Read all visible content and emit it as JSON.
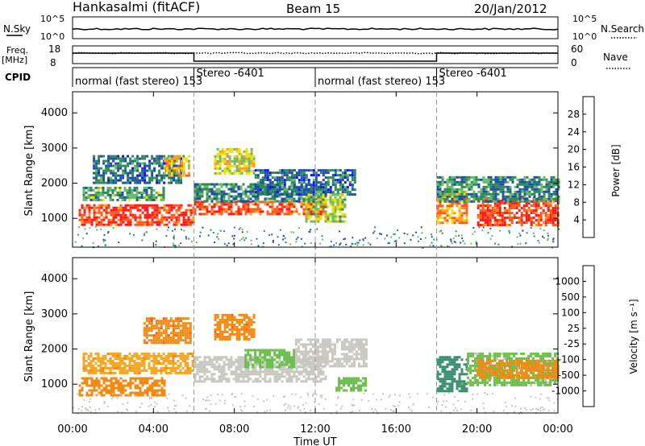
{
  "header": {
    "station": "Hankasalmi (fitACF)",
    "beam": "Beam 15",
    "date": "20/Jan/2012"
  },
  "strips": {
    "nsky_label": "N.Sky",
    "nsky_ticks": [
      "10^5",
      "10^0"
    ],
    "nsearch_label": "N.Search",
    "nsearch_ticks": [
      "10^5",
      "10^0"
    ],
    "freq_label_1": "Freq.",
    "freq_label_2": "[MHz]",
    "freq_ticks": [
      "18",
      "8"
    ],
    "nave_label": "Nave",
    "nave_ticks": [
      "60",
      "0"
    ],
    "cpid_label": "CPID"
  },
  "cpid_segments": [
    {
      "label": "normal (fast stereo) 153",
      "start_hour": 0
    },
    {
      "label": "Stereo -6401",
      "start_hour": 6
    },
    {
      "label": "normal (fast stereo) 153",
      "start_hour": 12
    },
    {
      "label": "Stereo -6401",
      "start_hour": 18
    }
  ],
  "xaxis": {
    "label": "Time UT",
    "ticks": [
      "00:00",
      "04:00",
      "08:00",
      "12:00",
      "16:00",
      "20:00",
      "00:00"
    ],
    "range_hours": [
      0,
      24
    ]
  },
  "panels": {
    "power": {
      "ylabel": "Slant Range [km]",
      "yticks": [
        "1000",
        "2000",
        "3000",
        "4000"
      ],
      "colorbar_label": "Power [dB]",
      "colorbar_ticks": [
        "4",
        "8",
        "12",
        "16",
        "20",
        "24",
        "28"
      ]
    },
    "velocity": {
      "ylabel": "Slant Range [km]",
      "yticks": [
        "1000",
        "2000",
        "3000",
        "4000"
      ],
      "colorbar_label": "Velocity [m s⁻¹]",
      "colorbar_ticks": [
        "1000",
        "500",
        "100",
        "25",
        "-25",
        "-100",
        "-500",
        "-1000"
      ]
    }
  },
  "chart_data": [
    {
      "type": "heatmap",
      "name": "Power",
      "x_unit": "hours UT",
      "y_unit": "km",
      "ylim": [
        180,
        4600
      ],
      "xlim": [
        0,
        24
      ],
      "color_range": [
        0,
        32
      ],
      "colors": [
        "#1010ff",
        "#1d4fa8",
        "#2e8b57",
        "#66bb6a",
        "#f0e000",
        "#ff9a1e",
        "#ff5a1e",
        "#ff1a1a"
      ],
      "regions": [
        {
          "t0": 0.3,
          "t1": 6.0,
          "r0": 800,
          "r1": 1400,
          "level": 28
        },
        {
          "t0": 0.5,
          "t1": 4.5,
          "r0": 1500,
          "r1": 1900,
          "level": 12
        },
        {
          "t0": 1.0,
          "t1": 5.5,
          "r0": 2000,
          "r1": 2800,
          "level": 8
        },
        {
          "t0": 4.5,
          "t1": 5.8,
          "r0": 2200,
          "r1": 2800,
          "level": 20
        },
        {
          "t0": 6.0,
          "t1": 12.5,
          "r0": 1100,
          "r1": 1500,
          "level": 26
        },
        {
          "t0": 6.0,
          "t1": 12.5,
          "r0": 1500,
          "r1": 2000,
          "level": 10
        },
        {
          "t0": 7.0,
          "t1": 9.0,
          "r0": 2300,
          "r1": 3000,
          "level": 18
        },
        {
          "t0": 9.0,
          "t1": 14.0,
          "r0": 1700,
          "r1": 2400,
          "level": 8
        },
        {
          "t0": 11.5,
          "t1": 13.5,
          "r0": 900,
          "r1": 1700,
          "level": 16
        },
        {
          "t0": 18.0,
          "t1": 19.5,
          "r0": 900,
          "r1": 1800,
          "level": 22
        },
        {
          "t0": 20.0,
          "t1": 24.0,
          "r0": 800,
          "r1": 1600,
          "level": 28
        },
        {
          "t0": 18.0,
          "t1": 24.0,
          "r0": 1500,
          "r1": 2200,
          "level": 10
        }
      ]
    },
    {
      "type": "heatmap",
      "name": "Velocity",
      "x_unit": "hours UT",
      "y_unit": "km",
      "ylim": [
        180,
        4600
      ],
      "xlim": [
        0,
        24
      ],
      "color_range": [
        -1000,
        1000
      ],
      "colors": [
        "#e81616",
        "#ff5a14",
        "#f08a14",
        "#f5a623",
        "#c8c8c0",
        "#c8c8c0",
        "#6abf4b",
        "#3a8f6e",
        "#2e6db0",
        "#1a4fa8"
      ],
      "regions": [
        {
          "t0": 0.3,
          "t1": 4.5,
          "r0": 700,
          "r1": 1200,
          "v": -200
        },
        {
          "t0": 0.5,
          "t1": 6.0,
          "r0": 1300,
          "r1": 1900,
          "v": -80
        },
        {
          "t0": 3.5,
          "t1": 5.8,
          "r0": 2200,
          "r1": 2900,
          "v": -400
        },
        {
          "t0": 6.0,
          "t1": 12.5,
          "r0": 1100,
          "r1": 1800,
          "v": 0
        },
        {
          "t0": 7.0,
          "t1": 9.0,
          "r0": 2300,
          "r1": 3000,
          "v": -400
        },
        {
          "t0": 8.5,
          "t1": 11.0,
          "r0": 1500,
          "r1": 2000,
          "v": 60
        },
        {
          "t0": 11.0,
          "t1": 14.5,
          "r0": 1500,
          "r1": 2300,
          "v": 0
        },
        {
          "t0": 13.0,
          "t1": 14.5,
          "r0": 800,
          "r1": 1200,
          "v": 60
        },
        {
          "t0": 18.0,
          "t1": 19.5,
          "r0": 800,
          "r1": 1800,
          "v": 150
        },
        {
          "t0": 19.5,
          "t1": 24.0,
          "r0": 1000,
          "r1": 1900,
          "v": 40
        },
        {
          "t0": 20.0,
          "t1": 24.0,
          "r0": 1200,
          "r1": 1700,
          "v": -250
        }
      ]
    }
  ]
}
